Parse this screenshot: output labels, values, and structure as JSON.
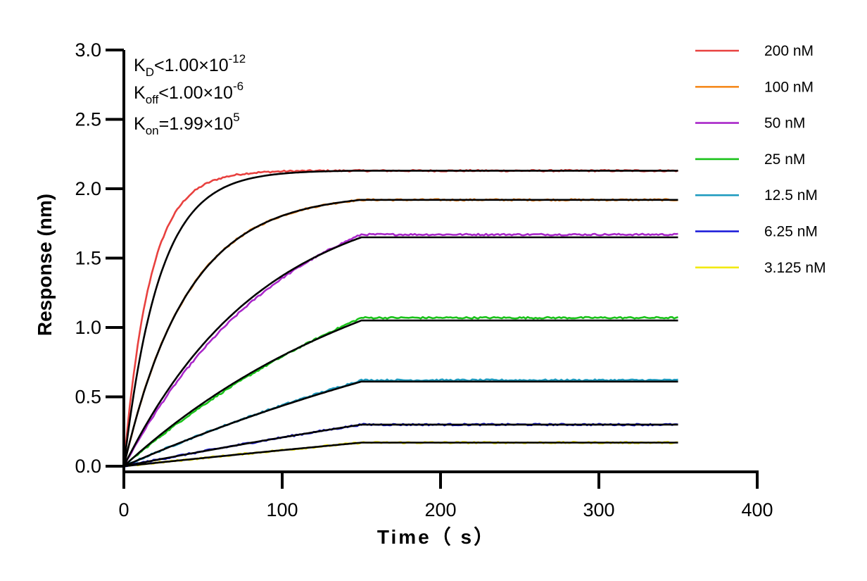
{
  "chart_data": {
    "type": "line",
    "xlabel": "Time（ s）",
    "ylabel": "Response (nm)",
    "xlim": [
      0,
      400
    ],
    "ylim": [
      0,
      3.0
    ],
    "x_ticks": [
      "0",
      "100",
      "200",
      "300",
      "400"
    ],
    "y_ticks": [
      "0.0",
      "0.5",
      "1.0",
      "1.5",
      "2.0",
      "2.5",
      "3.0"
    ],
    "annotations": {
      "kd": {
        "sym": "K",
        "sub": "D",
        "rel": "<1.00×10",
        "exp": "-12"
      },
      "koff": {
        "sym": "K",
        "sub": "off",
        "rel": "<1.00×10",
        "exp": "-6"
      },
      "kon": {
        "sym": "K",
        "sub": "on",
        "rel": "=1.99×10",
        "exp": "5"
      }
    },
    "assoc_end": 150,
    "x_end": 350,
    "fit_color": "#000000",
    "series": [
      {
        "name": "200 nM",
        "color": "#e8413f",
        "plateau_fit": 2.13,
        "plateau_data": 2.13,
        "k_fit": 0.045,
        "k_data": 0.06
      },
      {
        "name": "100 nM",
        "color": "#f58a1f",
        "plateau_fit": 1.92,
        "plateau_data": 1.92,
        "k_fit": 0.025,
        "k_data": 0.025
      },
      {
        "name": "50 nM",
        "color": "#a927c9",
        "plateau_fit": 1.65,
        "plateau_data": 1.67,
        "k_fit": 0.0115,
        "k_data": 0.0098
      },
      {
        "name": "25 nM",
        "color": "#19c219",
        "plateau_fit": 1.05,
        "plateau_data": 1.07,
        "k_fit": 0.0058,
        "k_data": 0.0045
      },
      {
        "name": "12.5 nM",
        "color": "#1f9bbf",
        "plateau_fit": 0.61,
        "plateau_data": 0.62,
        "k_fit": 0.0029,
        "k_data": 0.0026
      },
      {
        "name": "6.25 nM",
        "color": "#1616d8",
        "plateau_fit": 0.3,
        "plateau_data": 0.3,
        "k_fit": 0.0015,
        "k_data": 0.0015
      },
      {
        "name": "3.125 nM",
        "color": "#f2ea12",
        "plateau_fit": 0.17,
        "plateau_data": 0.17,
        "k_fit": 0.0008,
        "k_data": 0.0008
      }
    ]
  }
}
